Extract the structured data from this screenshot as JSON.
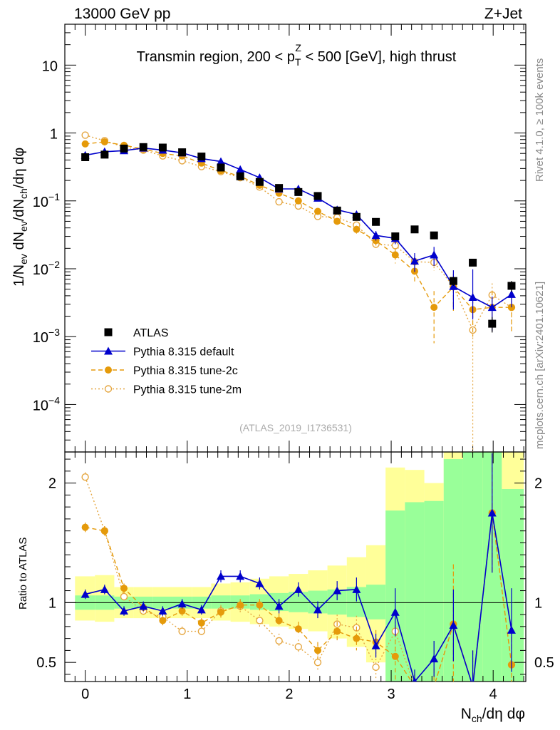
{
  "header": {
    "left": "13000 GeV pp",
    "right": "Z+Jet"
  },
  "side": {
    "rivet": "Rivet 4.1.0, ≥ 100k events",
    "mcplots": "mcplots.cern.ch [arXiv:2401.10621]"
  },
  "colors": {
    "atlas": "#000000",
    "default": "#0000cc",
    "tune2c": "#e59a0a",
    "tune2m": "#e5a640",
    "band_inner": "#99ff99",
    "band_outer": "#ffff99"
  },
  "chart_data": [
    {
      "type": "scatter",
      "panel": "main",
      "title_parts": [
        "Transmin region, 200 < p",
        "T",
        "Z",
        " < 500 [GeV], high thrust"
      ],
      "ylabel_parts": [
        "1/N",
        "ev",
        " dN",
        "ev",
        "/dN",
        "ch",
        "/dη dφ"
      ],
      "yscale": "log",
      "ylim": [
        2e-05,
        40
      ],
      "xlim": [
        -0.2,
        4.32
      ],
      "ytick_labels": [
        {
          "base": "10",
          "exp": "",
          "value": 10
        },
        {
          "base": "1",
          "exp": "",
          "value": 1
        },
        {
          "base": "10",
          "exp": "−1",
          "value": 0.1
        },
        {
          "base": "10",
          "exp": "−2",
          "value": 0.01
        },
        {
          "base": "10",
          "exp": "−3",
          "value": 0.001
        },
        {
          "base": "10",
          "exp": "−4",
          "value": 0.0001
        }
      ],
      "watermark": "(ATLAS_2019_I1736531)",
      "legend": [
        {
          "label": "ATLAS",
          "key": "atlas"
        },
        {
          "label": "Pythia 8.315 default",
          "key": "default"
        },
        {
          "label": "Pythia 8.315 tune-2c",
          "key": "tune2c"
        },
        {
          "label": "Pythia 8.315 tune-2m",
          "key": "tune2m"
        }
      ],
      "x": [
        0,
        0.19,
        0.38,
        0.57,
        0.76,
        0.95,
        1.14,
        1.33,
        1.52,
        1.71,
        1.9,
        2.09,
        2.28,
        2.47,
        2.66,
        2.85,
        3.04,
        3.23,
        3.42,
        3.61,
        3.8,
        3.99,
        4.18
      ],
      "series": [
        {
          "name": "ATLAS",
          "key": "atlas",
          "values": [
            0.44,
            0.48,
            0.59,
            0.62,
            0.61,
            0.52,
            0.45,
            0.31,
            0.23,
            0.19,
            0.155,
            0.135,
            0.118,
            0.072,
            0.058,
            0.049,
            0.03,
            0.038,
            0.031,
            0.0066,
            0.0123,
            0.00155,
            0.0056
          ],
          "err_lo": [
            0.02,
            0.02,
            0.02,
            0.02,
            0.02,
            0.02,
            0.02,
            0.01,
            0.01,
            0.01,
            0.005,
            0.005,
            0.005,
            0.003,
            0.003,
            0.003,
            0.002,
            0.002,
            0.002,
            0.001,
            0.001,
            0.0004,
            0.001
          ],
          "err_hi": [
            0.02,
            0.02,
            0.02,
            0.02,
            0.02,
            0.02,
            0.02,
            0.01,
            0.01,
            0.01,
            0.005,
            0.005,
            0.005,
            0.003,
            0.003,
            0.003,
            0.002,
            0.002,
            0.002,
            0.001,
            0.001,
            0.0004,
            0.001
          ]
        },
        {
          "name": "Pythia 8.315 default",
          "key": "default",
          "values": [
            0.47,
            0.53,
            0.55,
            0.6,
            0.56,
            0.51,
            0.42,
            0.38,
            0.29,
            0.22,
            0.15,
            0.15,
            0.11,
            0.074,
            0.063,
            0.031,
            0.028,
            0.013,
            0.016,
            0.0055,
            0.0038,
            0.0027,
            0.0042
          ],
          "err_lo": [
            0.02,
            0.02,
            0.02,
            0.02,
            0.02,
            0.02,
            0.02,
            0.015,
            0.012,
            0.01,
            0.008,
            0.008,
            0.007,
            0.006,
            0.006,
            0.005,
            0.005,
            0.004,
            0.005,
            0.003,
            0.002,
            0.0015,
            0.0015
          ],
          "err_hi": [
            0.02,
            0.02,
            0.02,
            0.02,
            0.02,
            0.02,
            0.02,
            0.015,
            0.012,
            0.01,
            0.008,
            0.008,
            0.007,
            0.006,
            0.006,
            0.005,
            0.005,
            0.004,
            0.005,
            0.004,
            0.006,
            0.0012,
            0.0015
          ]
        },
        {
          "name": "Pythia 8.315 tune-2c",
          "key": "tune2c",
          "values": [
            0.69,
            0.74,
            0.66,
            0.58,
            0.5,
            0.46,
            0.36,
            0.28,
            0.23,
            0.17,
            0.13,
            0.1,
            0.07,
            0.05,
            0.038,
            0.026,
            0.016,
            0.0092,
            0.0027,
            0.0054,
            0.0025,
            0.0027,
            0.0027
          ],
          "err_lo": [
            0.03,
            0.03,
            0.03,
            0.02,
            0.02,
            0.02,
            0.02,
            0.015,
            0.012,
            0.01,
            0.008,
            0.007,
            0.006,
            0.005,
            0.005,
            0.004,
            0.004,
            0.003,
            0.0019,
            0.003,
            0.0015,
            0.0015,
            0.0015
          ],
          "err_hi": [
            0.03,
            0.03,
            0.03,
            0.02,
            0.02,
            0.02,
            0.02,
            0.015,
            0.012,
            0.01,
            0.008,
            0.007,
            0.006,
            0.005,
            0.005,
            0.004,
            0.004,
            0.003,
            0.002,
            0.003,
            0.002,
            0.002,
            0.002
          ]
        },
        {
          "name": "Pythia 8.315 tune-2m",
          "key": "tune2m",
          "values": [
            0.93,
            0.77,
            0.62,
            0.56,
            0.46,
            0.39,
            0.32,
            0.27,
            0.22,
            0.16,
            0.097,
            0.084,
            0.059,
            0.057,
            0.044,
            0.023,
            0.022,
            0.0127,
            0.0124,
            0.0055,
            0.00125,
            0.0041,
            0.0027
          ],
          "err_lo": [
            0.03,
            0.03,
            0.03,
            0.02,
            0.02,
            0.02,
            0.02,
            0.015,
            0.012,
            0.01,
            0.008,
            0.007,
            0.006,
            0.005,
            0.005,
            0.004,
            0.004,
            0.003,
            0.003,
            0.003,
            0.00124,
            0.002,
            0.0015
          ],
          "err_hi": [
            0.03,
            0.03,
            0.03,
            0.02,
            0.02,
            0.02,
            0.02,
            0.015,
            0.012,
            0.01,
            0.008,
            0.007,
            0.006,
            0.005,
            0.005,
            0.004,
            0.004,
            0.003,
            0.003,
            0.003,
            0.002,
            0.002,
            0.002
          ]
        }
      ]
    },
    {
      "type": "scatter",
      "panel": "ratio",
      "ylabel": "Ratio to ATLAS",
      "xlabel_parts": [
        "N",
        "ch",
        "/dη dφ"
      ],
      "ylim": [
        0.34,
        2.26
      ],
      "xlim": [
        -0.2,
        4.32
      ],
      "yticks": [
        0.5,
        1,
        2
      ],
      "ytick_labels": [
        "0.5",
        "1",
        "2"
      ],
      "xticks": [
        0,
        1,
        2,
        3,
        4
      ],
      "xtick_labels": [
        "0",
        "1",
        "2",
        "3",
        "4"
      ],
      "x": [
        0,
        0.19,
        0.38,
        0.57,
        0.76,
        0.95,
        1.14,
        1.33,
        1.52,
        1.71,
        1.9,
        2.09,
        2.28,
        2.47,
        2.66,
        2.85,
        3.04,
        3.23,
        3.42,
        3.61,
        3.8,
        3.99,
        4.18
      ],
      "bin_edges": [
        -0.1,
        0.095,
        0.285,
        0.475,
        0.665,
        0.855,
        1.045,
        1.235,
        1.425,
        1.615,
        1.805,
        1.995,
        2.185,
        2.375,
        2.565,
        2.755,
        2.945,
        3.135,
        3.325,
        3.515,
        3.705,
        3.895,
        4.085,
        4.3
      ],
      "band_inner_lo": [
        0.94,
        0.94,
        0.95,
        0.95,
        0.95,
        0.95,
        0.95,
        0.95,
        0.95,
        0.94,
        0.93,
        0.92,
        0.91,
        0.9,
        0.88,
        0.86,
        0.3,
        0.3,
        0.3,
        0.3,
        0.3,
        0.3,
        0.3
      ],
      "band_inner_hi": [
        1.06,
        1.06,
        1.05,
        1.05,
        1.05,
        1.05,
        1.05,
        1.06,
        1.06,
        1.07,
        1.08,
        1.09,
        1.1,
        1.11,
        1.13,
        1.15,
        1.77,
        1.84,
        1.85,
        2.2,
        2.28,
        2.28,
        1.95
      ],
      "band_outer_lo": [
        0.85,
        0.84,
        0.87,
        0.87,
        0.87,
        0.87,
        0.87,
        0.85,
        0.84,
        0.82,
        0.8,
        0.78,
        0.76,
        0.7,
        0.63,
        0.5,
        0.3,
        0.3,
        0.3,
        0.3,
        0.3,
        0.3,
        0.3
      ],
      "band_outer_hi": [
        1.22,
        1.23,
        1.13,
        1.13,
        1.13,
        1.13,
        1.13,
        1.16,
        1.17,
        1.2,
        1.22,
        1.24,
        1.27,
        1.31,
        1.38,
        1.48,
        2.13,
        2.11,
        2.0,
        2.28,
        2.28,
        2.28,
        2.28
      ],
      "series": [
        {
          "name": "Pythia 8.315 default",
          "key": "default",
          "values": [
            1.07,
            1.11,
            0.93,
            0.97,
            0.93,
            0.99,
            0.94,
            1.22,
            1.22,
            1.16,
            0.97,
            1.11,
            0.94,
            1.1,
            1.11,
            0.64,
            0.92,
            0.34,
            0.53,
            0.81,
            0.3,
            1.75,
            0.77
          ],
          "err": [
            0.04,
            0.04,
            0.04,
            0.04,
            0.04,
            0.04,
            0.04,
            0.05,
            0.05,
            0.05,
            0.06,
            0.06,
            0.07,
            0.08,
            0.1,
            0.1,
            0.2,
            0.1,
            0.15,
            0.3,
            0.3,
            0.5,
            0.35
          ]
        },
        {
          "name": "Pythia 8.315 tune-2c",
          "key": "tune2c",
          "values": [
            1.63,
            1.6,
            1.12,
            0.96,
            0.85,
            0.93,
            0.83,
            0.92,
            0.98,
            0.98,
            0.85,
            0.78,
            0.6,
            0.76,
            0.7,
            0.67,
            0.55,
            0.3,
            0.3,
            0.82,
            0.3,
            1.75,
            0.48
          ],
          "err": [
            0.04,
            0.04,
            0.04,
            0.04,
            0.04,
            0.04,
            0.04,
            0.05,
            0.05,
            0.05,
            0.06,
            0.06,
            0.07,
            0.08,
            0.1,
            0.1,
            0.2,
            0.1,
            0.15,
            0.5,
            0.3,
            0.5,
            0.35
          ]
        },
        {
          "name": "Pythia 8.315 tune-2m",
          "key": "tune2m",
          "values": [
            2.05,
            1.6,
            1.05,
            0.93,
            0.88,
            0.76,
            0.76,
            0.93,
            0.97,
            0.85,
            0.68,
            0.63,
            0.5,
            0.82,
            0.79,
            0.46,
            0.76,
            0.3,
            0.3,
            0.82,
            0.3,
            1.75,
            0.48
          ],
          "err": [
            0.04,
            0.04,
            0.04,
            0.04,
            0.04,
            0.04,
            0.04,
            0.05,
            0.05,
            0.05,
            0.06,
            0.06,
            0.07,
            0.08,
            0.1,
            0.1,
            0.2,
            0.1,
            0.15,
            0.5,
            0.3,
            0.5,
            0.35
          ]
        }
      ]
    }
  ]
}
